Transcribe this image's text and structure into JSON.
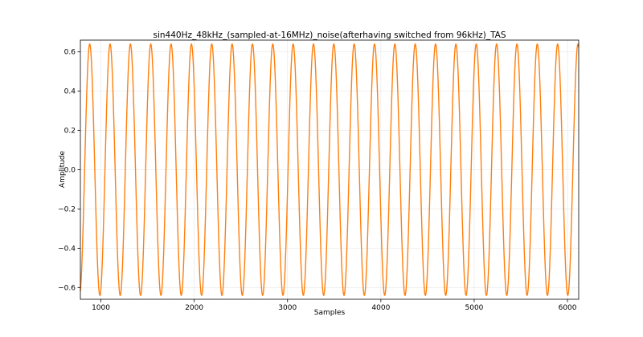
{
  "chart_data": {
    "type": "line",
    "title": "sin440Hz_48kHz_(sampled-at-16MHz)_noise(afterhaving switched from 96kHz)_TAS",
    "xlabel": "Samples",
    "ylabel": "Amplitude",
    "xlim": [
      780,
      6120
    ],
    "ylim": [
      -0.66,
      0.66
    ],
    "x_ticks": [
      1000,
      2000,
      3000,
      4000,
      5000,
      6000
    ],
    "y_ticks": [
      -0.6,
      -0.4,
      -0.2,
      0.0,
      0.2,
      0.4,
      0.6
    ],
    "x_tick_labels": [
      "1000",
      "2000",
      "3000",
      "4000",
      "5000",
      "6000"
    ],
    "y_tick_labels": [
      "−0.6",
      "−0.4",
      "−0.2",
      "0.0",
      "0.2",
      "0.4",
      "0.6"
    ],
    "grid": true,
    "series": [
      {
        "color": "#ff7f0e",
        "waveform": "sine",
        "amplitude": 0.64,
        "period_samples": 218,
        "first_peak_x": 880,
        "x_range": [
          780,
          6120
        ]
      }
    ]
  }
}
